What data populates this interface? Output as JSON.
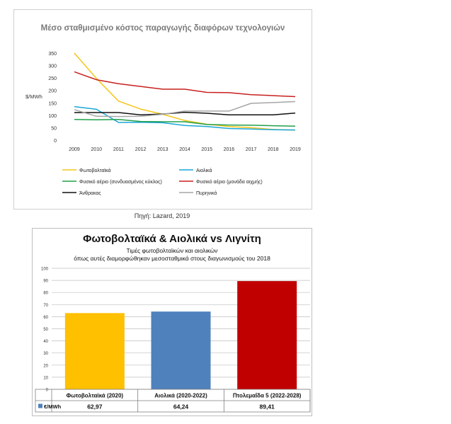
{
  "chart_data": [
    {
      "type": "line",
      "title": "Μέσο σταθμισμένο κόστος παραγωγής διαφόρων τεχνολογιών",
      "ylabel": "$/MWh",
      "xlabel": "",
      "ylim": [
        0,
        350
      ],
      "yticks": [
        "0",
        "50",
        "100",
        "150",
        "200",
        "250",
        "300",
        "350"
      ],
      "x": [
        "2009",
        "2010",
        "2011",
        "2012",
        "2013",
        "2014",
        "2015",
        "2016",
        "2017",
        "2018",
        "2019"
      ],
      "legend_position": "bottom",
      "grid": false,
      "series": [
        {
          "name": "Φωτοβολταϊκά",
          "color": "#f5c518",
          "values": [
            350,
            248,
            157,
            125,
            104,
            79,
            64,
            55,
            50,
            43,
            40
          ]
        },
        {
          "name": "Αιολικά",
          "color": "#1aa6d8",
          "values": [
            135,
            124,
            71,
            72,
            70,
            59,
            55,
            47,
            45,
            42,
            41
          ]
        },
        {
          "name": "Φυσικό αέριο (συνδυασμένος κύκλος)",
          "color": "#22a04a",
          "values": [
            83,
            82,
            83,
            75,
            74,
            74,
            63,
            61,
            60,
            58,
            56
          ]
        },
        {
          "name": "Φυσικό αέριο (μονάδα αιχμής)",
          "color": "#c8201e",
          "values": [
            275,
            243,
            227,
            216,
            205,
            205,
            192,
            191,
            183,
            179,
            175
          ]
        },
        {
          "name": "Άνθρακας",
          "color": "#111111",
          "values": [
            111,
            111,
            111,
            102,
            105,
            112,
            108,
            102,
            102,
            102,
            109
          ]
        },
        {
          "name": "Πυρηνικά",
          "color": "#a6a6a6",
          "values": [
            123,
            96,
            95,
            96,
            104,
            117,
            117,
            117,
            148,
            151,
            155
          ]
        }
      ]
    },
    {
      "type": "bar",
      "title": "Φωτοβολταϊκά & Αιολικά vs Λιγνίτη",
      "subtitle_lines": [
        "Τιμές φωτοβολταϊκών και αιολικών",
        "όπως αυτές διαμορφώθηκαν μεσοσταθμικά στους διαγωνισμούς του 2018"
      ],
      "ylim": [
        0,
        100
      ],
      "yticks": [
        "0",
        "10",
        "20",
        "30",
        "40",
        "50",
        "60",
        "70",
        "80",
        "90",
        "100"
      ],
      "categories": [
        "Φωτοβολταϊκά (2020)",
        "Αιολικά (2020-2022)",
        "Πτολεμαΐδα 5 (2022-2028)"
      ],
      "colors": [
        "#ffc000",
        "#4f81bd",
        "#c00000"
      ],
      "series": [
        {
          "name": "€/MWh",
          "values": [
            62.97,
            64.24,
            89.41
          ],
          "labels": [
            "62,97",
            "64,24",
            "89,41"
          ]
        }
      ],
      "legend_marker_color": "#4f81bd",
      "grid": true
    }
  ],
  "source_note": "Πηγή: Lazard, 2019"
}
